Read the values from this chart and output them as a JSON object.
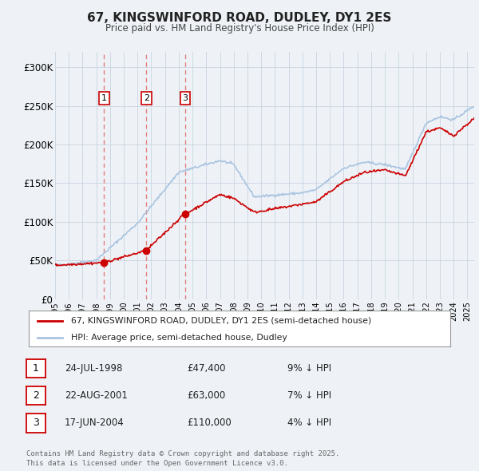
{
  "title": "67, KINGSWINFORD ROAD, DUDLEY, DY1 2ES",
  "subtitle": "Price paid vs. HM Land Registry's House Price Index (HPI)",
  "legend_line1": "67, KINGSWINFORD ROAD, DUDLEY, DY1 2ES (semi-detached house)",
  "legend_line2": "HPI: Average price, semi-detached house, Dudley",
  "footer": "Contains HM Land Registry data © Crown copyright and database right 2025.\nThis data is licensed under the Open Government Licence v3.0.",
  "transactions": [
    {
      "num": 1,
      "date": "24-JUL-1998",
      "year": 1998.56,
      "price": 47400,
      "label": "9% ↓ HPI"
    },
    {
      "num": 2,
      "date": "22-AUG-2001",
      "year": 2001.64,
      "price": 63000,
      "label": "7% ↓ HPI"
    },
    {
      "num": 3,
      "date": "17-JUN-2004",
      "year": 2004.46,
      "price": 110000,
      "label": "4% ↓ HPI"
    }
  ],
  "hpi_color": "#aac4e0",
  "price_color": "#cc0000",
  "vline_color": "#e08080",
  "marker_color": "#cc0000",
  "background_color": "#eef2f7",
  "plot_bg_color": "#eef2f7",
  "ylim": [
    0,
    320000
  ],
  "xlim_start": 1995.0,
  "xlim_end": 2025.5,
  "yticks": [
    0,
    50000,
    100000,
    150000,
    200000,
    250000,
    300000
  ],
  "ytick_labels": [
    "£0",
    "£50K",
    "£100K",
    "£150K",
    "£200K",
    "£250K",
    "£300K"
  ]
}
